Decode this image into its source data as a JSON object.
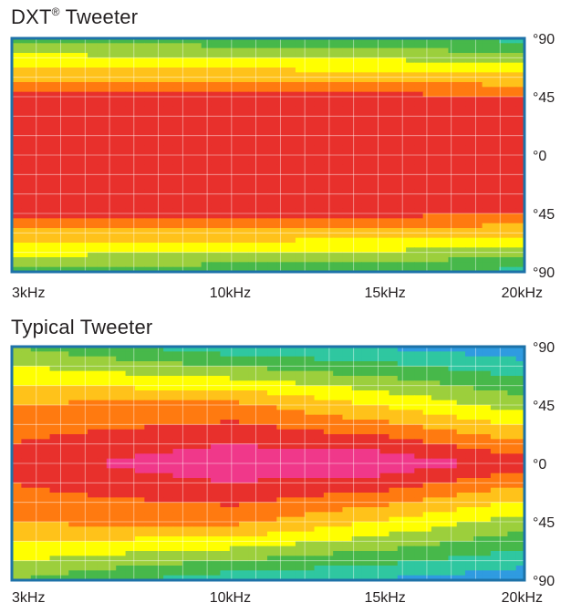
{
  "chart_data": [
    {
      "type": "heatmap",
      "title": "DXT",
      "title_mark": "®",
      "title_suffix": " Tweeter",
      "x_ticks": [
        {
          "value": 3,
          "label": "3kHz"
        },
        {
          "value": 10,
          "label": "10kHz"
        },
        {
          "value": 15,
          "label": "15kHz"
        },
        {
          "value": 20,
          "label": "20kHz"
        }
      ],
      "y_ticks": [
        {
          "value": 90,
          "label": "°90"
        },
        {
          "value": 45,
          "label": "°45"
        },
        {
          "value": 0,
          "label": "°0"
        },
        {
          "value": -45,
          "label": "°45"
        },
        {
          "value": -90,
          "label": "°90"
        }
      ],
      "xlim_khz": [
        3,
        20
      ],
      "ylim_deg": [
        -90,
        90
      ],
      "xlabel": "",
      "ylabel": "",
      "grid": true,
      "colorscale": [
        "#2d49b8",
        "#2f9be0",
        "#2fc7a0",
        "#47b84a",
        "#9ccf3c",
        "#ffff00",
        "#ffc21a",
        "#ff7a10",
        "#e8302c",
        "#f0388a",
        "#d24fc8"
      ],
      "level_scale": "0 = edge of coverage (blue) to 10 = on-axis maximum (magenta)",
      "level_profile": [
        {
          "freq_khz": 3,
          "levels_by_angle": [
            [
              90,
              3.3
            ],
            [
              45,
              7.8
            ],
            [
              0,
              8.0
            ],
            [
              -45,
              7.8
            ],
            [
              -90,
              3.3
            ]
          ]
        },
        {
          "freq_khz": 10,
          "levels_by_angle": [
            [
              90,
              2.8
            ],
            [
              45,
              7.9
            ],
            [
              0,
              8.0
            ],
            [
              -45,
              7.9
            ],
            [
              -90,
              2.8
            ]
          ]
        },
        {
          "freq_khz": 15,
          "levels_by_angle": [
            [
              90,
              2.6
            ],
            [
              45,
              7.8
            ],
            [
              0,
              8.0
            ],
            [
              -45,
              7.8
            ],
            [
              -90,
              2.6
            ]
          ]
        },
        {
          "freq_khz": 20,
          "levels_by_angle": [
            [
              90,
              2.2
            ],
            [
              45,
              7.5
            ],
            [
              0,
              8.0
            ],
            [
              -45,
              7.5
            ],
            [
              -90,
              2.2
            ]
          ]
        }
      ]
    },
    {
      "type": "heatmap",
      "title": "Typical Tweeter",
      "x_ticks": [
        {
          "value": 3,
          "label": "3kHz"
        },
        {
          "value": 10,
          "label": "10kHz"
        },
        {
          "value": 15,
          "label": "15kHz"
        },
        {
          "value": 20,
          "label": "20kHz"
        }
      ],
      "y_ticks": [
        {
          "value": 90,
          "label": "°90"
        },
        {
          "value": 45,
          "label": "°45"
        },
        {
          "value": 0,
          "label": "°0"
        },
        {
          "value": -45,
          "label": "°45"
        },
        {
          "value": -90,
          "label": "°90"
        }
      ],
      "xlim_khz": [
        3,
        20
      ],
      "ylim_deg": [
        -90,
        90
      ],
      "xlabel": "",
      "ylabel": "",
      "grid": true,
      "colorscale": [
        "#2d49b8",
        "#2f9be0",
        "#2fc7a0",
        "#47b84a",
        "#9ccf3c",
        "#ffff00",
        "#ffc21a",
        "#ff7a10",
        "#e8302c",
        "#f0388a",
        "#d24fc8"
      ],
      "level_scale": "0 = edge of coverage (blue) to 10 = on-axis maximum (magenta)",
      "level_profile": [
        {
          "freq_khz": 3,
          "levels_by_angle": [
            [
              90,
              3.5
            ],
            [
              45,
              6.6
            ],
            [
              0,
              8.0
            ],
            [
              -45,
              6.6
            ],
            [
              -90,
              3.5
            ]
          ]
        },
        {
          "freq_khz": 10,
          "levels_by_angle": [
            [
              90,
              1.8
            ],
            [
              45,
              6.8
            ],
            [
              0,
              9.3
            ],
            [
              -45,
              6.8
            ],
            [
              -90,
              1.8
            ]
          ]
        },
        {
          "freq_khz": 15,
          "levels_by_angle": [
            [
              90,
              1.4
            ],
            [
              45,
              5.4
            ],
            [
              0,
              9.3
            ],
            [
              -45,
              5.4
            ],
            [
              -90,
              1.4
            ]
          ]
        },
        {
          "freq_khz": 20,
          "levels_by_angle": [
            [
              90,
              0.8
            ],
            [
              45,
              4.0
            ],
            [
              0,
              8.0
            ],
            [
              -45,
              4.0
            ],
            [
              -90,
              0.8
            ]
          ]
        }
      ]
    }
  ]
}
